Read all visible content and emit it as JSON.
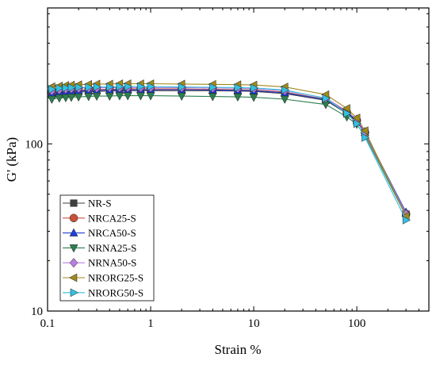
{
  "chart_data": {
    "type": "line",
    "title": "",
    "xlabel": "Strain %",
    "ylabel": "G' (kPa)",
    "xscale": "log",
    "yscale": "log",
    "xlim": [
      0.1,
      500
    ],
    "ylim": [
      10,
      650
    ],
    "x_ticks": [
      {
        "value": 0.1,
        "label": "0.1"
      },
      {
        "value": 1,
        "label": "1"
      },
      {
        "value": 10,
        "label": "10"
      },
      {
        "value": 100,
        "label": "100"
      }
    ],
    "y_ticks": [
      {
        "value": 10,
        "label": "10"
      },
      {
        "value": 100,
        "label": "100"
      }
    ],
    "x": [
      0.11,
      0.13,
      0.15,
      0.17,
      0.2,
      0.25,
      0.3,
      0.4,
      0.5,
      0.6,
      0.8,
      1,
      2,
      4,
      7,
      10,
      20,
      50,
      80,
      100,
      120,
      300
    ],
    "legend_position": "lower-left",
    "series": [
      {
        "name": "NR-S",
        "color": "#3f3f3f",
        "marker": "square",
        "values": [
          196,
          199,
          201,
          202,
          204,
          205,
          206,
          207,
          207,
          208,
          208,
          208,
          208,
          208,
          207,
          206,
          200,
          182,
          152,
          136,
          116,
          38
        ]
      },
      {
        "name": "NRCA25-S",
        "color": "#c9503a",
        "marker": "circle",
        "values": [
          202,
          205,
          207,
          208,
          209,
          210,
          211,
          212,
          212,
          213,
          213,
          213,
          213,
          212,
          211,
          210,
          204,
          185,
          155,
          138,
          117,
          38
        ]
      },
      {
        "name": "NRCA50-S",
        "color": "#1f3fd8",
        "marker": "triangle-up",
        "values": [
          200,
          203,
          205,
          206,
          207,
          208,
          209,
          210,
          210,
          211,
          211,
          211,
          211,
          210,
          209,
          208,
          202,
          184,
          154,
          138,
          117,
          39
        ]
      },
      {
        "name": "NRNA25-S",
        "color": "#2e7d4f",
        "marker": "triangle-down",
        "values": [
          185,
          188,
          189,
          190,
          191,
          192,
          193,
          193,
          194,
          194,
          194,
          194,
          193,
          192,
          191,
          190,
          185,
          172,
          145,
          131,
          112,
          37
        ]
      },
      {
        "name": "NRNA50-S",
        "color": "#b77fe0",
        "marker": "diamond",
        "values": [
          208,
          211,
          213,
          214,
          215,
          216,
          216,
          217,
          217,
          217,
          217,
          217,
          217,
          216,
          215,
          214,
          208,
          188,
          157,
          140,
          118,
          38
        ]
      },
      {
        "name": "NRORG25-S",
        "color": "#a08a1c",
        "marker": "triangle-left",
        "values": [
          220,
          222,
          224,
          225,
          226,
          227,
          228,
          228,
          229,
          229,
          229,
          229,
          228,
          227,
          226,
          225,
          219,
          197,
          163,
          143,
          120,
          37
        ]
      },
      {
        "name": "NRORG50-S",
        "color": "#35bfe0",
        "marker": "triangle-right",
        "values": [
          212,
          215,
          216,
          217,
          218,
          218,
          219,
          219,
          220,
          220,
          220,
          220,
          219,
          218,
          217,
          216,
          210,
          187,
          152,
          132,
          109,
          35
        ]
      }
    ]
  }
}
